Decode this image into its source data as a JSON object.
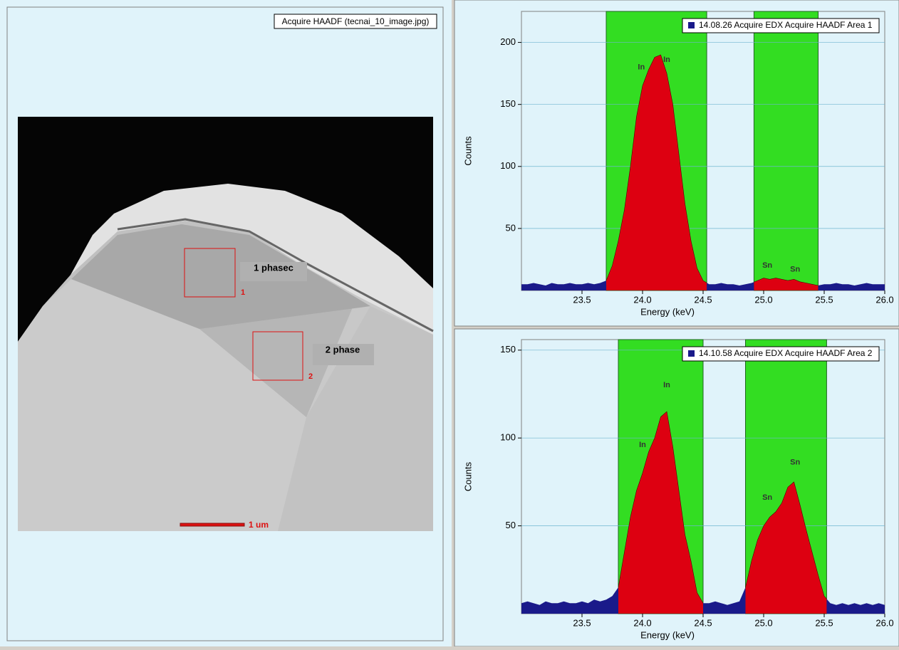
{
  "image_panel": {
    "title": "Acquire HAADF (tecnai_10_image.jpg)",
    "regions": [
      {
        "label": "1 phasec",
        "number": "1"
      },
      {
        "label": "2 phase",
        "number": "2"
      }
    ],
    "scale_bar": "1 um"
  },
  "chart_data": [
    {
      "type": "spectrum",
      "legend": "14.08.26 Acquire EDX Acquire HAADF Area 1",
      "x_label": "Energy (keV)",
      "y_label": "Counts",
      "xlim": [
        23.0,
        26.0
      ],
      "xticks": [
        23.5,
        {
          "value": 24,
          "label": "24.0"
        },
        24.5,
        {
          "value": 25,
          "label": "25.0"
        },
        25.5,
        {
          "value": 26,
          "label": "26.0"
        }
      ],
      "ylim": [
        0,
        225
      ],
      "yticks": [
        50,
        100,
        150,
        200
      ],
      "grid": true,
      "regions": [
        [
          23.7,
          24.53
        ],
        [
          24.92,
          25.45
        ]
      ],
      "colors": {
        "background": "#e0f3fa",
        "region": "#33dd22",
        "peak": "#dd0011",
        "baseline": "#1a1a8a"
      },
      "x": [
        23.0,
        23.05,
        23.1,
        23.15,
        23.2,
        23.25,
        23.3,
        23.35,
        23.4,
        23.45,
        23.5,
        23.55,
        23.6,
        23.65,
        23.7,
        23.75,
        23.8,
        23.85,
        23.9,
        23.95,
        24.0,
        24.05,
        24.1,
        24.15,
        24.2,
        24.25,
        24.3,
        24.35,
        24.4,
        24.45,
        24.5,
        24.55,
        24.6,
        24.65,
        24.7,
        24.75,
        24.8,
        24.85,
        24.9,
        24.95,
        25.0,
        25.05,
        25.1,
        25.15,
        25.2,
        25.25,
        25.3,
        25.35,
        25.4,
        25.45,
        25.5,
        25.55,
        25.6,
        25.65,
        25.7,
        25.75,
        25.8,
        25.85,
        25.9,
        25.95,
        26.0
      ],
      "values": [
        5,
        5,
        6,
        5,
        4,
        6,
        5,
        5,
        6,
        5,
        5,
        6,
        5,
        6,
        8,
        20,
        40,
        65,
        100,
        140,
        165,
        178,
        188,
        190,
        175,
        150,
        110,
        70,
        40,
        18,
        8,
        5,
        5,
        6,
        5,
        5,
        4,
        5,
        6,
        8,
        10,
        9,
        10,
        9,
        8,
        9,
        7,
        6,
        5,
        4,
        5,
        5,
        6,
        5,
        5,
        4,
        5,
        6,
        5,
        5,
        5
      ],
      "annotations": [
        {
          "text": "In",
          "x": 23.99,
          "y": 180
        },
        {
          "text": "In",
          "x": 24.2,
          "y": 186
        },
        {
          "text": "Sn",
          "x": 25.03,
          "y": 20
        },
        {
          "text": "Sn",
          "x": 25.26,
          "y": 17
        }
      ]
    },
    {
      "type": "spectrum",
      "legend": "14.10.58 Acquire EDX Acquire HAADF Area 2",
      "x_label": "Energy (keV)",
      "y_label": "Counts",
      "xlim": [
        23.0,
        26.0
      ],
      "xticks": [
        23.5,
        {
          "value": 24,
          "label": "24.0"
        },
        24.5,
        {
          "value": 25,
          "label": "25.0"
        },
        25.5,
        {
          "value": 26,
          "label": "26.0"
        }
      ],
      "ylim": [
        0,
        156
      ],
      "yticks": [
        50,
        100,
        150
      ],
      "grid": true,
      "regions": [
        [
          23.8,
          24.5
        ],
        [
          24.85,
          25.52
        ]
      ],
      "colors": {
        "background": "#e0f3fa",
        "region": "#33dd22",
        "peak": "#dd0011",
        "baseline": "#1a1a8a"
      },
      "x": [
        23.0,
        23.05,
        23.1,
        23.15,
        23.2,
        23.25,
        23.3,
        23.35,
        23.4,
        23.45,
        23.5,
        23.55,
        23.6,
        23.65,
        23.7,
        23.75,
        23.8,
        23.85,
        23.9,
        23.95,
        24.0,
        24.05,
        24.1,
        24.15,
        24.2,
        24.25,
        24.3,
        24.35,
        24.4,
        24.45,
        24.5,
        24.55,
        24.6,
        24.65,
        24.7,
        24.75,
        24.8,
        24.85,
        24.9,
        24.95,
        25.0,
        25.05,
        25.1,
        25.15,
        25.2,
        25.25,
        25.3,
        25.35,
        25.4,
        25.45,
        25.5,
        25.55,
        25.6,
        25.65,
        25.7,
        25.75,
        25.8,
        25.85,
        25.9,
        25.95,
        26.0
      ],
      "values": [
        6,
        7,
        6,
        5,
        7,
        6,
        6,
        7,
        6,
        6,
        7,
        6,
        8,
        7,
        8,
        10,
        15,
        35,
        55,
        70,
        80,
        92,
        100,
        112,
        115,
        95,
        70,
        45,
        30,
        12,
        6,
        6,
        7,
        6,
        5,
        6,
        7,
        15,
        30,
        42,
        50,
        55,
        58,
        63,
        72,
        75,
        62,
        48,
        35,
        22,
        10,
        6,
        5,
        6,
        5,
        6,
        5,
        6,
        5,
        6,
        5
      ],
      "annotations": [
        {
          "text": "In",
          "x": 24.2,
          "y": 130
        },
        {
          "text": "In",
          "x": 24.0,
          "y": 96
        },
        {
          "text": "Sn",
          "x": 25.03,
          "y": 66
        },
        {
          "text": "Sn",
          "x": 25.26,
          "y": 86
        }
      ]
    }
  ]
}
